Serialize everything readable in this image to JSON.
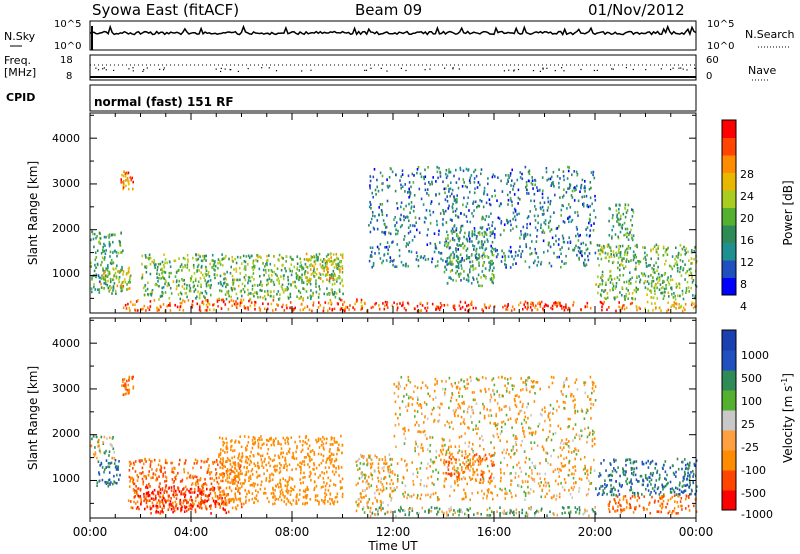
{
  "header": {
    "station": "Syowa East (fitACF)",
    "beam": "Beam 09",
    "date": "01/Nov/2012"
  },
  "noise_panel": {
    "left_label": "N.Sky",
    "left_ticks": [
      "10^5",
      "10^0"
    ],
    "right_label": "N.Search",
    "right_ticks": [
      "10^5",
      "10^0"
    ]
  },
  "freq_panel": {
    "left_label_line1": "Freq.",
    "left_label_line2": "[MHz]",
    "left_ticks": [
      "18",
      "8"
    ],
    "right_label": "Nave",
    "right_ticks": [
      "60",
      "0"
    ]
  },
  "cpid_panel": {
    "label": "CPID",
    "mode_text": "normal (fast) 151 RF"
  },
  "panels": [
    {
      "id": "power",
      "ylabel": "Slant Range [km]",
      "yticks": [
        "4000",
        "3000",
        "2000",
        "1000"
      ],
      "colorbar_label": "Power [dB]",
      "colorbar_ticks": [
        "28",
        "24",
        "20",
        "16",
        "12",
        "8",
        "4"
      ]
    },
    {
      "id": "velocity",
      "ylabel": "Slant Range [km]",
      "yticks": [
        "4000",
        "3000",
        "2000",
        "1000"
      ],
      "colorbar_label": "Velocity [m s",
      "colorbar_label_sup": "-1",
      "colorbar_label_end": "]",
      "colorbar_ticks": [
        "1000",
        "500",
        "100",
        "25",
        "-25",
        "-100",
        "-500",
        "-1000"
      ]
    }
  ],
  "xaxis": {
    "label": "Time UT",
    "ticks": [
      "00:00",
      "04:00",
      "08:00",
      "12:00",
      "16:00",
      "20:00",
      "00:00"
    ]
  },
  "chart_data": {
    "type": "heatmap",
    "title": "Syowa East (fitACF)  Beam 09  01/Nov/2012",
    "xlabel": "Time UT",
    "ylabel": "Slant Range [km]",
    "x_range_hours": [
      0,
      24
    ],
    "ylim_km": [
      180,
      4550
    ],
    "panels": [
      {
        "quantity": "Power",
        "unit": "dB",
        "colorbar_range": [
          0,
          32
        ],
        "colorbar_colors": [
          "#0000ff",
          "#2050c0",
          "#1f8f8f",
          "#2e8b57",
          "#55b030",
          "#a8cc20",
          "#e8b800",
          "#ff8c00",
          "#ff4500",
          "#ff0000"
        ],
        "regions": [
          {
            "t": [
              0.0,
              1.3
            ],
            "r": [
              600,
              2000
            ],
            "value": 12
          },
          {
            "t": [
              0.4,
              1.6
            ],
            "r": [
              700,
              1200
            ],
            "value": 18
          },
          {
            "t": [
              1.2,
              1.7
            ],
            "r": [
              2900,
              3300
            ],
            "value": 24
          },
          {
            "t": [
              1.3,
              11.0
            ],
            "r": [
              250,
              500
            ],
            "value": 26
          },
          {
            "t": [
              2.0,
              10.0
            ],
            "r": [
              500,
              1500
            ],
            "value": 14
          },
          {
            "t": [
              8.5,
              10.0
            ],
            "r": [
              900,
              1500
            ],
            "value": 20
          },
          {
            "t": [
              10.5,
              21.0
            ],
            "r": [
              250,
              450
            ],
            "value": 28
          },
          {
            "t": [
              11.0,
              20.0
            ],
            "r": [
              1200,
              3400
            ],
            "value": 8
          },
          {
            "t": [
              14.0,
              16.0
            ],
            "r": [
              800,
              2000
            ],
            "value": 12
          },
          {
            "t": [
              20.0,
              24.0
            ],
            "r": [
              500,
              1700
            ],
            "value": 14
          },
          {
            "t": [
              20.5,
              21.5
            ],
            "r": [
              1800,
              2600
            ],
            "value": 12
          },
          {
            "t": [
              21.0,
              24.0
            ],
            "r": [
              250,
              450
            ],
            "value": 22
          }
        ]
      },
      {
        "quantity": "Velocity",
        "unit": "m s^-1",
        "colorbar_range": [
          -1000,
          1000
        ],
        "regions": [
          {
            "t": [
              0.0,
              1.0
            ],
            "r": [
              1500,
              2000
            ],
            "value": 25
          },
          {
            "t": [
              0.2,
              1.2
            ],
            "r": [
              900,
              1500
            ],
            "value": 500
          },
          {
            "t": [
              1.2,
              1.7
            ],
            "r": [
              2900,
              3300
            ],
            "value": -500
          },
          {
            "t": [
              1.5,
              6.0
            ],
            "r": [
              400,
              1500
            ],
            "value": -500
          },
          {
            "t": [
              1.8,
              5.5
            ],
            "r": [
              300,
              900
            ],
            "value": -1000
          },
          {
            "t": [
              5.0,
              10.0
            ],
            "r": [
              500,
              2000
            ],
            "value": -300
          },
          {
            "t": [
              10.5,
              12.0
            ],
            "r": [
              300,
              1600
            ],
            "value": -100
          },
          {
            "t": [
              11.0,
              20.0
            ],
            "r": [
              250,
              450
            ],
            "value": 100
          },
          {
            "t": [
              12.0,
              20.0
            ],
            "r": [
              600,
              3300
            ],
            "value": -100
          },
          {
            "t": [
              14.0,
              16.0
            ],
            "r": [
              1000,
              1600
            ],
            "value": -500
          },
          {
            "t": [
              20.0,
              24.0
            ],
            "r": [
              700,
              1500
            ],
            "value": 500
          },
          {
            "t": [
              20.5,
              24.0
            ],
            "r": [
              300,
              700
            ],
            "value": -500
          }
        ]
      }
    ]
  }
}
